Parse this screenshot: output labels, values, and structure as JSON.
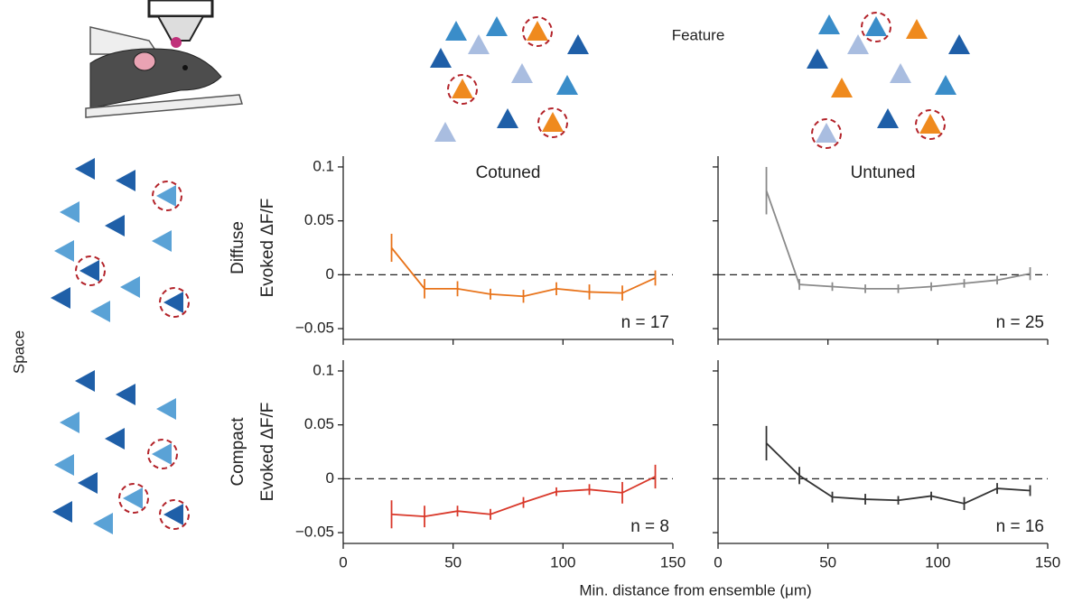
{
  "feature": "Feature",
  "space": "Space",
  "xlabel": "Min. distance from ensemble (μm)",
  "chart_data": [
    {
      "type": "line",
      "title": "Cotuned",
      "title_color": "#e8731a",
      "row_label": "Diffuse",
      "ylabel": "Evoked ΔF/F",
      "annotation": "n = 17",
      "x": [
        22,
        37,
        52,
        67,
        82,
        97,
        112,
        127,
        142
      ],
      "series": [
        {
          "color": "#e8731a",
          "values": [
            0.025,
            -0.013,
            -0.013,
            -0.018,
            -0.02,
            -0.013,
            -0.016,
            -0.017,
            -0.003
          ],
          "errors": [
            0.013,
            0.009,
            0.007,
            0.005,
            0.006,
            0.006,
            0.007,
            0.007,
            0.007
          ]
        }
      ],
      "xlim": [
        0,
        150
      ],
      "xticks": [
        0,
        50,
        100,
        150
      ],
      "xtick_labels": false,
      "ylim": [
        -0.06,
        0.11
      ],
      "yticks": [
        0.1,
        0.05,
        0,
        {
          "value": -0.05,
          "label": "−0.05"
        }
      ],
      "ytick_labels": true,
      "zero_line": true
    },
    {
      "type": "line",
      "title": "Untuned",
      "title_color": "#555555",
      "annotation": "n = 25",
      "x": [
        22,
        37,
        52,
        67,
        82,
        97,
        112,
        127,
        142
      ],
      "series": [
        {
          "color": "#8a8a8a",
          "values": [
            0.078,
            -0.009,
            -0.011,
            -0.013,
            -0.013,
            -0.011,
            -0.008,
            -0.005,
            0.001
          ],
          "errors": [
            0.022,
            0.005,
            0.004,
            0.004,
            0.004,
            0.004,
            0.004,
            0.004,
            0.006
          ]
        }
      ],
      "xlim": [
        0,
        150
      ],
      "xticks": [
        0,
        50,
        100,
        150
      ],
      "xtick_labels": false,
      "ylim": [
        -0.06,
        0.11
      ],
      "yticks": [
        0.1,
        0.05,
        0,
        -0.05
      ],
      "ytick_labels": false,
      "zero_line": true
    },
    {
      "type": "line",
      "row_label": "Compact",
      "ylabel": "Evoked ΔF/F",
      "annotation": "n = 8",
      "x": [
        22,
        37,
        52,
        67,
        82,
        97,
        112,
        127,
        142
      ],
      "series": [
        {
          "color": "#d9382a",
          "values": [
            -0.033,
            -0.035,
            -0.03,
            -0.033,
            -0.022,
            -0.012,
            -0.01,
            -0.013,
            0.002
          ],
          "errors": [
            0.013,
            0.01,
            0.005,
            0.005,
            0.005,
            0.004,
            0.005,
            0.01,
            0.011
          ]
        }
      ],
      "xlim": [
        0,
        150
      ],
      "xticks": [
        0,
        50,
        100,
        150
      ],
      "xtick_labels": true,
      "ylim": [
        -0.06,
        0.11
      ],
      "yticks": [
        0.1,
        0.05,
        0,
        {
          "value": -0.05,
          "label": "−0.05"
        }
      ],
      "ytick_labels": true,
      "zero_line": true
    },
    {
      "type": "line",
      "annotation": "n = 16",
      "x": [
        22,
        37,
        52,
        67,
        82,
        97,
        112,
        127,
        142
      ],
      "series": [
        {
          "color": "#333333",
          "values": [
            0.033,
            0.003,
            -0.017,
            -0.019,
            -0.02,
            -0.016,
            -0.023,
            -0.009,
            -0.011
          ],
          "errors": [
            0.016,
            0.008,
            0.005,
            0.005,
            0.004,
            0.004,
            0.006,
            0.005,
            0.005
          ]
        }
      ],
      "xlim": [
        0,
        150
      ],
      "xticks": [
        0,
        50,
        100,
        150
      ],
      "xtick_labels": true,
      "ylim": [
        -0.06,
        0.11
      ],
      "yticks": [
        0.1,
        0.05,
        0,
        -0.05
      ],
      "ytick_labels": false,
      "zero_line": true
    }
  ]
}
